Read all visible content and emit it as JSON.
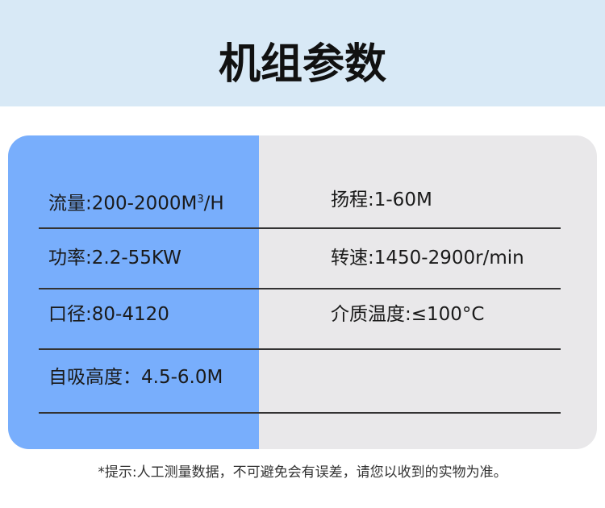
{
  "title": "机组参数",
  "colors": {
    "header_bg": "#d8e9f6",
    "left_column": "#78aefc",
    "right_column": "#e9e8ea"
  },
  "rows": [
    {
      "left": {
        "label": "流量:200-2000M",
        "sup": "3",
        "suffix": "/H"
      },
      "right": "扬程:1-60M"
    },
    {
      "left": {
        "label": "功率:2.2-55KW",
        "sup": "",
        "suffix": ""
      },
      "right": "转速:1450-2900r/min"
    },
    {
      "left": {
        "label": "口径:80-4120",
        "sup": "",
        "suffix": ""
      },
      "right": "介质温度:≤100°C"
    },
    {
      "left": {
        "label": "自吸高度：4.5-6.0M",
        "sup": "",
        "suffix": ""
      },
      "right": ""
    }
  ],
  "footer_note": "*提示:人工测量数据，不可避免会有误差，请您以收到的实物为准。"
}
